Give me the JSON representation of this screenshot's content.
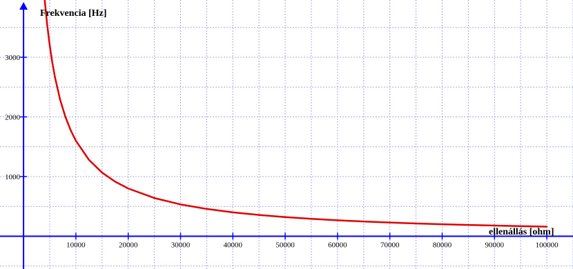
{
  "chart_data": {
    "type": "line",
    "xlabel": "ellenállás [ohm]",
    "ylabel": "Frekvencia [Hz]",
    "xlim": [
      -4500,
      105000
    ],
    "ylim": [
      -550,
      3960
    ],
    "x_ticks": [
      10000,
      20000,
      30000,
      40000,
      50000,
      60000,
      70000,
      80000,
      90000,
      100000
    ],
    "x_tick_labels": [
      "10000",
      "20000",
      "30000",
      "40000",
      "50000",
      "60000",
      "70000",
      "80000",
      "90000",
      "100000"
    ],
    "y_ticks": [
      1000,
      2000,
      3000
    ],
    "y_tick_labels": [
      "1000",
      "2000",
      "3000"
    ],
    "x_grid_step": 5000,
    "y_grid_step": 500,
    "grid": true,
    "curve": "frequency = 16000000 / resistance",
    "series": [
      {
        "color": "#e00000",
        "x": [
          4000,
          4500,
          5000,
          5500,
          6000,
          7000,
          8000,
          9000,
          10000,
          12500,
          15000,
          17500,
          20000,
          25000,
          30000,
          35000,
          40000,
          45000,
          50000,
          55000,
          60000,
          65000,
          70000,
          75000,
          80000,
          85000,
          90000,
          95000,
          100000
        ],
        "y": [
          4000,
          3556,
          3200,
          2909,
          2667,
          2286,
          2000,
          1778,
          1600,
          1280,
          1067,
          914,
          800,
          640,
          533,
          457,
          400,
          356,
          320,
          291,
          267,
          246,
          229,
          213,
          200,
          188,
          178,
          168,
          160
        ]
      }
    ],
    "axis_color": "#0000ff",
    "grid_color": "#a8a8e0",
    "curve_color": "#e00000"
  }
}
